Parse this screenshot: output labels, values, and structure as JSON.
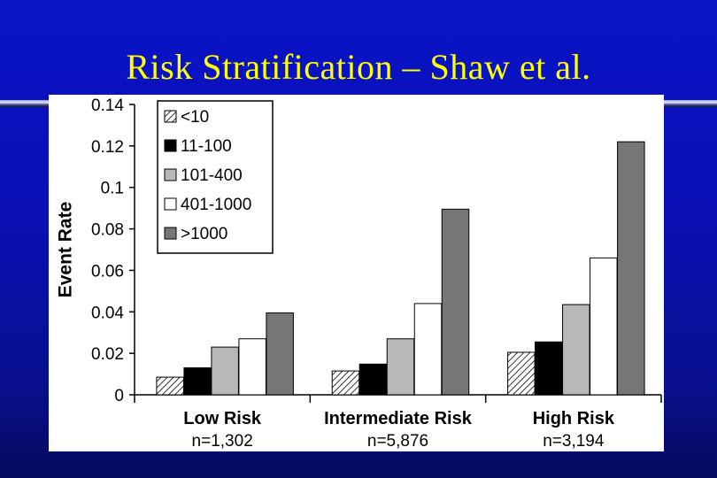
{
  "slide": {
    "title": "Risk Stratification – Shaw et al."
  },
  "colors": {
    "background": "#0a12b4",
    "title": "#ffff00",
    "series": [
      "hatched",
      "#000000",
      "#b8b8b8",
      "#ffffff",
      "#767676"
    ]
  },
  "chart_data": {
    "type": "bar",
    "ylabel": "Event Rate",
    "ylim": [
      0,
      0.14
    ],
    "yticks": [
      "0",
      "0.02",
      "0.04",
      "0.06",
      "0.08",
      "0.1",
      "0.12",
      "0.14"
    ],
    "categories": [
      "Low Risk",
      "Intermediate Risk",
      "High Risk"
    ],
    "category_sublabels": [
      "n=1,302",
      "n=5,876",
      "n=3,194"
    ],
    "legend_position": "top-left",
    "series": [
      {
        "name": "<10",
        "values": [
          0.0085,
          0.0115,
          0.0205
        ]
      },
      {
        "name": "11-100",
        "values": [
          0.013,
          0.0148,
          0.0255
        ]
      },
      {
        "name": "101-400",
        "values": [
          0.023,
          0.027,
          0.0435
        ]
      },
      {
        "name": "401-1000",
        "values": [
          0.027,
          0.044,
          0.066
        ]
      },
      {
        "name": ">1000",
        "values": [
          0.0395,
          0.0895,
          0.122
        ]
      }
    ]
  }
}
